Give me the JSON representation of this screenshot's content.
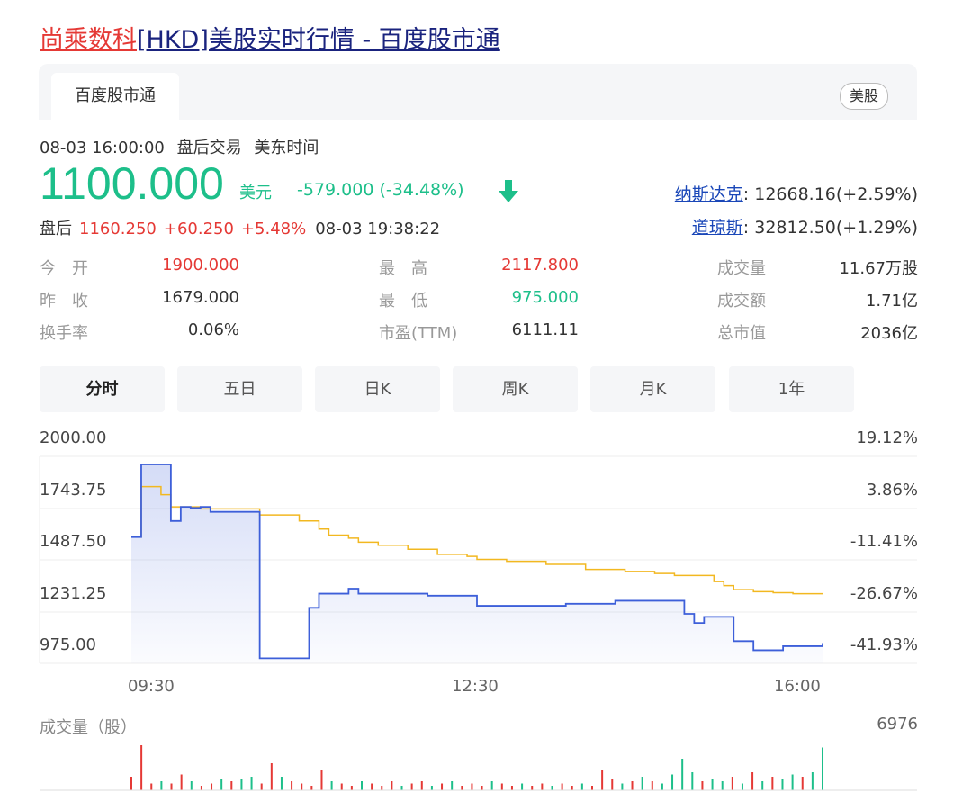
{
  "header": {
    "title_link": "尚乘数科",
    "title_rest": "[HKD]美股实时行情 - 百度股市通"
  },
  "tabs": {
    "active_label": "百度股市通",
    "market_badge": "美股"
  },
  "quote": {
    "datetime": "08-03 16:00:00",
    "session": "盘后交易",
    "timezone": "美东时间",
    "price": "1100.000",
    "currency": "美元",
    "change": "-579.000 (-34.48%)",
    "direction": "down",
    "after_label": "盘后",
    "after_price": "1160.250",
    "after_change": "+60.250",
    "after_pct": "+5.48%",
    "after_time": "08-03 19:38:22"
  },
  "indices": [
    {
      "name": "纳斯达克",
      "value": ": 12668.16(+2.59%)"
    },
    {
      "name": "道琼斯",
      "value": ": 32812.50(+1.29%)"
    }
  ],
  "stats": [
    {
      "label": "今　开",
      "value": "1900.000",
      "color": "#e53935"
    },
    {
      "label": "昨　收",
      "value": "1679.000",
      "color": "#333333"
    },
    {
      "label": "换手率",
      "value": "0.06%",
      "color": "#333333"
    },
    {
      "label": "最　高",
      "value": "2117.800",
      "color": "#e53935"
    },
    {
      "label": "最　低",
      "value": "975.000",
      "color": "#1dbf8a"
    },
    {
      "label": "市盈(TTM)",
      "value": "6111.11",
      "color": "#333333"
    },
    {
      "label": "成交量",
      "value": "11.67万股",
      "color": "#333333"
    },
    {
      "label": "成交额",
      "value": "1.71亿",
      "color": "#333333"
    },
    {
      "label": "总市值",
      "value": "2036亿",
      "color": "#333333"
    }
  ],
  "periods": [
    "分时",
    "五日",
    "日K",
    "周K",
    "月K",
    "1年"
  ],
  "chart_data": {
    "type": "line",
    "y_left_ticks": [
      "2000.00",
      "1743.75",
      "1487.50",
      "1231.25",
      "975.00"
    ],
    "y_right_ticks": [
      "19.12%",
      "3.86%",
      "-11.41%",
      "-26.67%",
      "-41.93%"
    ],
    "x_ticks": [
      "09:30",
      "12:30",
      "16:00"
    ],
    "ylim": [
      975,
      2000
    ],
    "colors": {
      "price": "#3d5fd9",
      "avg": "#f2b820",
      "up": "#e53935",
      "down": "#1dbf8a"
    },
    "series": [
      {
        "name": "price",
        "values": [
          1600,
          1960,
          1960,
          1960,
          1680,
          1750,
          1745,
          1750,
          1725,
          1725,
          1725,
          1725,
          1725,
          1000,
          1000,
          1000,
          1000,
          1000,
          1250,
          1320,
          1320,
          1320,
          1345,
          1320,
          1320,
          1320,
          1320,
          1320,
          1320,
          1320,
          1310,
          1310,
          1310,
          1310,
          1310,
          1260,
          1260,
          1260,
          1260,
          1260,
          1260,
          1260,
          1260,
          1260,
          1270,
          1270,
          1270,
          1270,
          1270,
          1285,
          1285,
          1285,
          1285,
          1285,
          1285,
          1285,
          1220,
          1175,
          1205,
          1205,
          1205,
          1085,
          1085,
          1040,
          1040,
          1040,
          1060,
          1060,
          1060,
          1060,
          1075
        ]
      },
      {
        "name": "avg",
        "values": [
          1600,
          1850,
          1850,
          1810,
          1750,
          1750,
          1750,
          1740,
          1740,
          1740,
          1740,
          1740,
          1740,
          1710,
          1710,
          1710,
          1710,
          1680,
          1680,
          1640,
          1610,
          1610,
          1595,
          1575,
          1575,
          1560,
          1560,
          1560,
          1540,
          1540,
          1540,
          1515,
          1515,
          1515,
          1505,
          1490,
          1490,
          1490,
          1480,
          1480,
          1480,
          1480,
          1465,
          1465,
          1465,
          1465,
          1440,
          1440,
          1440,
          1440,
          1430,
          1430,
          1430,
          1420,
          1420,
          1410,
          1410,
          1410,
          1410,
          1380,
          1360,
          1340,
          1340,
          1330,
          1330,
          1325,
          1325,
          1320,
          1320,
          1320,
          1320
        ]
      }
    ],
    "volume": {
      "label": "成交量（股）",
      "max_label": "6976",
      "bars": [
        {
          "v": 0.3,
          "c": "up"
        },
        {
          "v": 1.0,
          "c": "up"
        },
        {
          "v": 0.15,
          "c": "up"
        },
        {
          "v": 0.2,
          "c": "down"
        },
        {
          "v": 0.15,
          "c": "up"
        },
        {
          "v": 0.35,
          "c": "up"
        },
        {
          "v": 0.2,
          "c": "down"
        },
        {
          "v": 0.1,
          "c": "up"
        },
        {
          "v": 0.15,
          "c": "up"
        },
        {
          "v": 0.25,
          "c": "down"
        },
        {
          "v": 0.2,
          "c": "up"
        },
        {
          "v": 0.25,
          "c": "down"
        },
        {
          "v": 0.3,
          "c": "down"
        },
        {
          "v": 0.15,
          "c": "up"
        },
        {
          "v": 0.6,
          "c": "up"
        },
        {
          "v": 0.3,
          "c": "down"
        },
        {
          "v": 0.2,
          "c": "up"
        },
        {
          "v": 0.15,
          "c": "up"
        },
        {
          "v": 0.1,
          "c": "up"
        },
        {
          "v": 0.45,
          "c": "up"
        },
        {
          "v": 0.2,
          "c": "down"
        },
        {
          "v": 0.15,
          "c": "up"
        },
        {
          "v": 0.1,
          "c": "up"
        },
        {
          "v": 0.2,
          "c": "down"
        },
        {
          "v": 0.15,
          "c": "up"
        },
        {
          "v": 0.1,
          "c": "up"
        },
        {
          "v": 0.2,
          "c": "up"
        },
        {
          "v": 0.1,
          "c": "down"
        },
        {
          "v": 0.15,
          "c": "up"
        },
        {
          "v": 0.2,
          "c": "up"
        },
        {
          "v": 0.1,
          "c": "down"
        },
        {
          "v": 0.15,
          "c": "up"
        },
        {
          "v": 0.2,
          "c": "down"
        },
        {
          "v": 0.1,
          "c": "up"
        },
        {
          "v": 0.15,
          "c": "up"
        },
        {
          "v": 0.1,
          "c": "up"
        },
        {
          "v": 0.2,
          "c": "down"
        },
        {
          "v": 0.15,
          "c": "up"
        },
        {
          "v": 0.1,
          "c": "up"
        },
        {
          "v": 0.15,
          "c": "down"
        },
        {
          "v": 0.1,
          "c": "up"
        },
        {
          "v": 0.15,
          "c": "up"
        },
        {
          "v": 0.1,
          "c": "down"
        },
        {
          "v": 0.15,
          "c": "up"
        },
        {
          "v": 0.1,
          "c": "up"
        },
        {
          "v": 0.15,
          "c": "down"
        },
        {
          "v": 0.1,
          "c": "up"
        },
        {
          "v": 0.45,
          "c": "up"
        },
        {
          "v": 0.25,
          "c": "up"
        },
        {
          "v": 0.15,
          "c": "down"
        },
        {
          "v": 0.2,
          "c": "up"
        },
        {
          "v": 0.3,
          "c": "down"
        },
        {
          "v": 0.2,
          "c": "up"
        },
        {
          "v": 0.15,
          "c": "down"
        },
        {
          "v": 0.35,
          "c": "down"
        },
        {
          "v": 0.7,
          "c": "down"
        },
        {
          "v": 0.4,
          "c": "down"
        },
        {
          "v": 0.2,
          "c": "up"
        },
        {
          "v": 0.25,
          "c": "down"
        },
        {
          "v": 0.2,
          "c": "down"
        },
        {
          "v": 0.3,
          "c": "up"
        },
        {
          "v": 0.15,
          "c": "down"
        },
        {
          "v": 0.4,
          "c": "up"
        },
        {
          "v": 0.2,
          "c": "down"
        },
        {
          "v": 0.3,
          "c": "up"
        },
        {
          "v": 0.25,
          "c": "down"
        },
        {
          "v": 0.35,
          "c": "down"
        },
        {
          "v": 0.3,
          "c": "up"
        },
        {
          "v": 0.4,
          "c": "down"
        },
        {
          "v": 0.95,
          "c": "down"
        }
      ]
    }
  }
}
